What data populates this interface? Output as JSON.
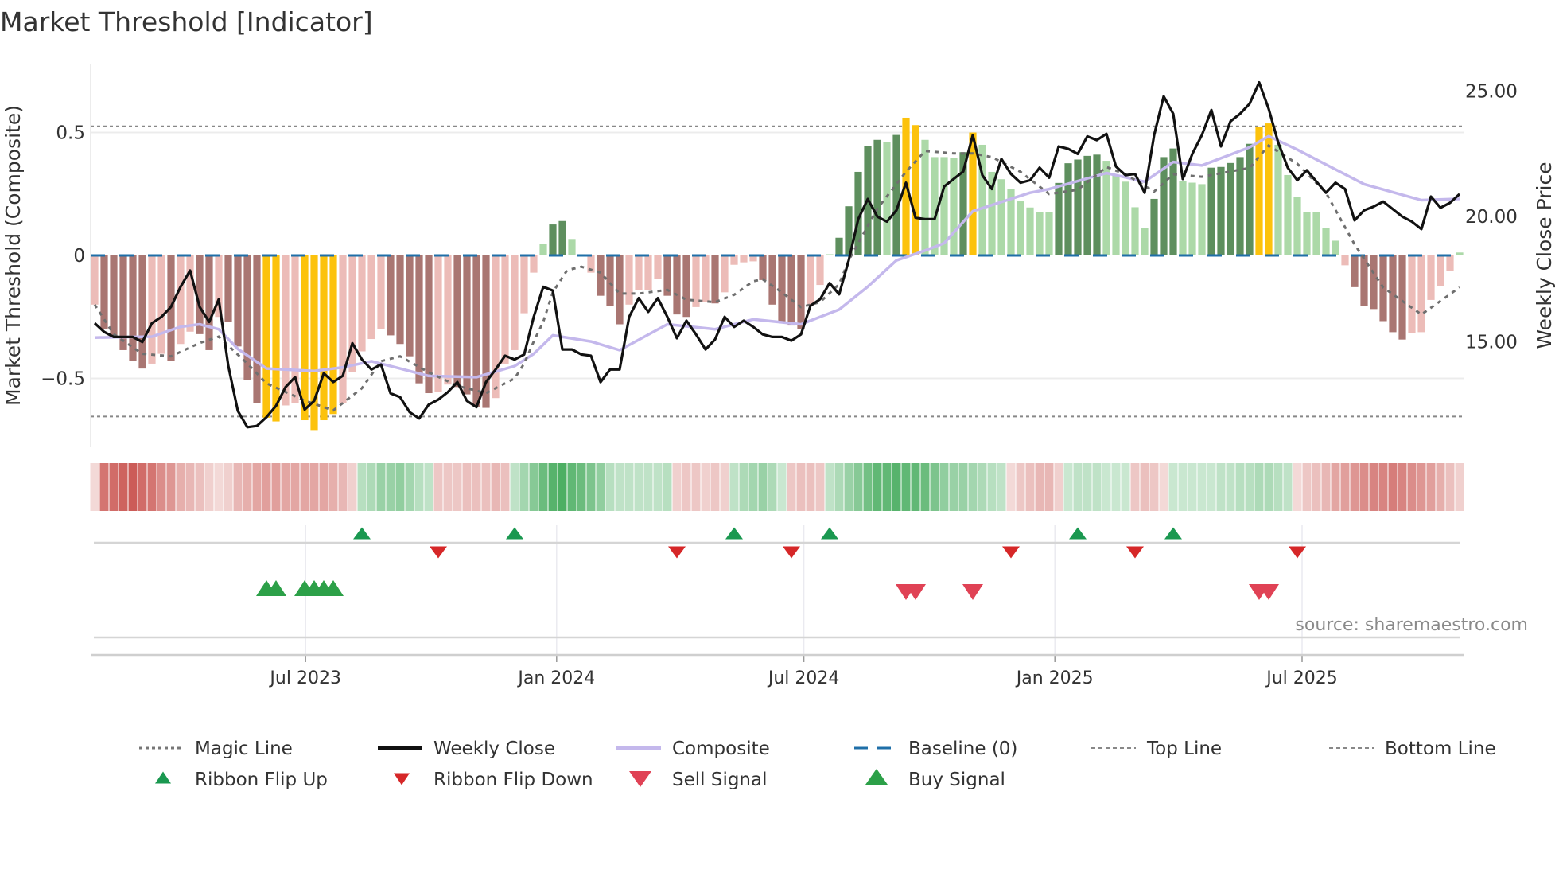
{
  "chart_data": {
    "type": "bar",
    "title": "Market Threshold [Indicator]",
    "ylabel": "Market Threshold (Composite)",
    "ylabel_right": "Weekly Close Price",
    "ylim": [
      -0.78,
      0.78
    ],
    "ylim_right": [
      10.8,
      26.1
    ],
    "xlim": [
      -0.5,
      143.5
    ],
    "x_unit": "week index",
    "y_ticks": [
      {
        "value": 0.5,
        "label": "0.5"
      },
      {
        "value": 0,
        "label": "0"
      },
      {
        "value": -0.5,
        "label": "−0.5"
      }
    ],
    "y_right_ticks": [
      {
        "value": 25,
        "label": "25.00"
      },
      {
        "value": 20,
        "label": "20.00"
      },
      {
        "value": 15,
        "label": "15.00"
      }
    ],
    "x_ticks": [
      {
        "value": 22.1,
        "label": "Jul 2023"
      },
      {
        "value": 48.4,
        "label": "Jan 2024"
      },
      {
        "value": 74.3,
        "label": "Jul 2024"
      },
      {
        "value": 100.6,
        "label": "Jan 2025"
      },
      {
        "value": 126.5,
        "label": "Jul 2025"
      }
    ],
    "top_line": 0.525,
    "bottom_line": -0.655,
    "baseline": 0,
    "composite_bars": [
      -0.2,
      -0.3,
      -0.33,
      -0.385,
      -0.43,
      -0.46,
      -0.44,
      -0.4,
      -0.43,
      -0.36,
      -0.31,
      -0.32,
      -0.385,
      -0.25,
      -0.27,
      -0.37,
      -0.505,
      -0.6,
      -0.66,
      -0.675,
      -0.61,
      -0.6,
      -0.67,
      -0.71,
      -0.67,
      -0.645,
      -0.6,
      -0.475,
      -0.39,
      -0.34,
      -0.3,
      -0.325,
      -0.36,
      -0.41,
      -0.52,
      -0.56,
      -0.555,
      -0.525,
      -0.535,
      -0.565,
      -0.615,
      -0.62,
      -0.58,
      -0.44,
      -0.385,
      -0.235,
      -0.07,
      0.048,
      0.126,
      0.14,
      0.067,
      0.005,
      -0.07,
      -0.164,
      -0.205,
      -0.28,
      -0.2,
      -0.14,
      -0.14,
      -0.095,
      -0.164,
      -0.24,
      -0.25,
      -0.21,
      -0.19,
      -0.195,
      -0.15,
      -0.038,
      -0.028,
      -0.024,
      -0.1,
      -0.2,
      -0.27,
      -0.285,
      -0.3,
      -0.205,
      -0.12,
      0.005,
      0.072,
      0.2,
      0.34,
      0.445,
      0.47,
      0.46,
      0.49,
      0.56,
      0.53,
      0.47,
      0.4,
      0.4,
      0.395,
      0.42,
      0.5,
      0.45,
      0.34,
      0.31,
      0.27,
      0.22,
      0.195,
      0.175,
      0.175,
      0.295,
      0.375,
      0.39,
      0.405,
      0.41,
      0.385,
      0.325,
      0.3,
      0.196,
      0.11,
      0.23,
      0.4,
      0.435,
      0.302,
      0.296,
      0.29,
      0.357,
      0.36,
      0.376,
      0.4,
      0.454,
      0.524,
      0.537,
      0.45,
      0.327,
      0.237,
      0.178,
      0.175,
      0.11,
      0.06,
      -0.04,
      -0.129,
      -0.205,
      -0.218,
      -0.267,
      -0.312,
      -0.342,
      -0.315,
      -0.312,
      -0.181,
      -0.126,
      -0.064,
      0.012
    ],
    "extreme_weeks": [
      18,
      19,
      22,
      23,
      24,
      25,
      85,
      86,
      92,
      122,
      123
    ],
    "weekly_close": [
      15.75,
      15.4,
      15.2,
      15.2,
      15.2,
      15.0,
      15.75,
      16.0,
      16.4,
      17.2,
      17.85,
      16.4,
      15.8,
      16.7,
      14.05,
      12.25,
      11.6,
      11.65,
      12.0,
      12.45,
      13.2,
      13.6,
      12.3,
      12.65,
      13.75,
      13.4,
      13.65,
      14.95,
      14.3,
      13.9,
      14.1,
      12.95,
      12.8,
      12.2,
      11.95,
      12.5,
      12.7,
      13.0,
      13.4,
      12.65,
      12.4,
      13.4,
      13.9,
      14.45,
      14.3,
      14.5,
      16.0,
      17.2,
      17.05,
      14.7,
      14.7,
      14.5,
      14.45,
      13.4,
      13.9,
      13.9,
      16.0,
      16.75,
      16.2,
      16.75,
      16.0,
      15.15,
      15.85,
      15.3,
      14.7,
      15.1,
      16.0,
      15.6,
      15.85,
      15.6,
      15.3,
      15.2,
      15.2,
      15.05,
      15.3,
      16.45,
      16.7,
      17.35,
      16.9,
      18.25,
      19.9,
      20.7,
      20.0,
      19.8,
      20.25,
      21.35,
      19.95,
      19.9,
      19.9,
      21.2,
      21.5,
      21.8,
      23.25,
      21.65,
      21.1,
      22.3,
      21.7,
      21.35,
      21.45,
      21.95,
      21.55,
      22.8,
      22.7,
      22.5,
      23.2,
      23.05,
      23.3,
      22.0,
      21.65,
      21.7,
      20.95,
      23.25,
      24.8,
      24.1,
      21.5,
      22.5,
      23.25,
      24.25,
      22.8,
      23.8,
      24.1,
      24.5,
      25.35,
      24.3,
      22.95,
      21.95,
      21.45,
      21.85,
      21.4,
      20.95,
      21.35,
      21.1,
      19.85,
      20.25,
      20.4,
      20.6,
      20.3,
      20.0,
      19.8,
      19.5,
      20.8,
      20.35,
      20.55,
      20.9
    ],
    "composite_line": [
      [
        0,
        -0.334
      ],
      [
        6,
        -0.33
      ],
      [
        9,
        -0.29
      ],
      [
        11,
        -0.28
      ],
      [
        13,
        -0.3
      ],
      [
        15,
        -0.38
      ],
      [
        18,
        -0.46
      ],
      [
        23,
        -0.47
      ],
      [
        26,
        -0.455
      ],
      [
        29,
        -0.43
      ],
      [
        32,
        -0.46
      ],
      [
        35,
        -0.49
      ],
      [
        40,
        -0.495
      ],
      [
        44,
        -0.45
      ],
      [
        46,
        -0.4
      ],
      [
        48,
        -0.325
      ],
      [
        52,
        -0.35
      ],
      [
        55,
        -0.385
      ],
      [
        60,
        -0.28
      ],
      [
        65,
        -0.3
      ],
      [
        69,
        -0.26
      ],
      [
        74,
        -0.28
      ],
      [
        78,
        -0.22
      ],
      [
        81,
        -0.127
      ],
      [
        84,
        -0.02
      ],
      [
        87,
        0.02
      ],
      [
        89,
        0.05
      ],
      [
        92,
        0.18
      ],
      [
        98,
        0.255
      ],
      [
        100,
        0.27
      ],
      [
        106,
        0.335
      ],
      [
        110,
        0.3
      ],
      [
        113,
        0.38
      ],
      [
        116,
        0.366
      ],
      [
        121,
        0.44
      ],
      [
        123,
        0.485
      ],
      [
        126,
        0.43
      ],
      [
        133,
        0.29
      ],
      [
        139,
        0.225
      ],
      [
        143,
        0.23
      ]
    ],
    "magic_line": [
      [
        0,
        -0.2
      ],
      [
        2,
        -0.32
      ],
      [
        5,
        -0.4
      ],
      [
        8,
        -0.41
      ],
      [
        11,
        -0.356
      ],
      [
        13,
        -0.33
      ],
      [
        16,
        -0.44
      ],
      [
        18,
        -0.52
      ],
      [
        22,
        -0.59
      ],
      [
        25,
        -0.63
      ],
      [
        28,
        -0.54
      ],
      [
        30,
        -0.43
      ],
      [
        32,
        -0.41
      ],
      [
        35,
        -0.475
      ],
      [
        38,
        -0.53
      ],
      [
        41,
        -0.56
      ],
      [
        44,
        -0.5
      ],
      [
        45,
        -0.44
      ],
      [
        46,
        -0.35
      ],
      [
        47,
        -0.27
      ],
      [
        48,
        -0.15
      ],
      [
        49.5,
        -0.06
      ],
      [
        51,
        -0.046
      ],
      [
        53,
        -0.07
      ],
      [
        55,
        -0.155
      ],
      [
        57,
        -0.155
      ],
      [
        60,
        -0.14
      ],
      [
        62,
        -0.18
      ],
      [
        65,
        -0.19
      ],
      [
        67,
        -0.16
      ],
      [
        69,
        -0.105
      ],
      [
        70,
        -0.097
      ],
      [
        72,
        -0.15
      ],
      [
        74,
        -0.21
      ],
      [
        76,
        -0.19
      ],
      [
        78,
        -0.117
      ],
      [
        79,
        -0.02
      ],
      [
        82,
        0.19
      ],
      [
        85,
        0.34
      ],
      [
        87,
        0.425
      ],
      [
        90,
        0.415
      ],
      [
        92,
        0.415
      ],
      [
        94,
        0.4
      ],
      [
        97,
        0.34
      ],
      [
        100,
        0.25
      ],
      [
        103,
        0.267
      ],
      [
        106,
        0.36
      ],
      [
        108,
        0.33
      ],
      [
        111,
        0.26
      ],
      [
        113,
        0.33
      ],
      [
        116,
        0.32
      ],
      [
        121,
        0.356
      ],
      [
        123,
        0.447
      ],
      [
        126,
        0.373
      ],
      [
        129,
        0.255
      ],
      [
        132,
        0.045
      ],
      [
        135,
        -0.13
      ],
      [
        139,
        -0.24
      ],
      [
        143,
        -0.13
      ]
    ],
    "ribbon": [
      -0.15,
      -0.75,
      -0.8,
      -0.85,
      -0.9,
      -0.8,
      -0.75,
      -0.6,
      -0.55,
      -0.4,
      -0.35,
      -0.3,
      -0.2,
      -0.15,
      -0.2,
      -0.35,
      -0.4,
      -0.45,
      -0.5,
      -0.5,
      -0.45,
      -0.45,
      -0.45,
      -0.45,
      -0.45,
      -0.4,
      -0.35,
      -0.2,
      0.3,
      0.35,
      0.45,
      0.45,
      0.5,
      0.4,
      0.3,
      0.25,
      -0.25,
      -0.25,
      -0.25,
      -0.3,
      -0.3,
      -0.3,
      -0.35,
      -0.3,
      0.25,
      0.4,
      0.55,
      0.7,
      0.8,
      0.85,
      0.75,
      0.7,
      0.6,
      0.5,
      0.3,
      0.25,
      0.25,
      0.25,
      0.25,
      0.25,
      0.3,
      -0.2,
      -0.25,
      -0.25,
      -0.2,
      -0.25,
      -0.2,
      0.25,
      0.35,
      0.4,
      0.45,
      0.35,
      0.2,
      -0.25,
      -0.3,
      -0.3,
      -0.25,
      0.25,
      0.35,
      0.45,
      0.55,
      0.65,
      0.75,
      0.75,
      0.8,
      0.75,
      0.75,
      0.7,
      0.6,
      0.5,
      0.45,
      0.45,
      0.4,
      0.35,
      0.3,
      0.25,
      -0.15,
      -0.25,
      -0.3,
      -0.35,
      -0.35,
      -0.2,
      0.2,
      0.25,
      0.25,
      0.25,
      0.2,
      0.2,
      0.2,
      -0.25,
      -0.3,
      -0.25,
      -0.15,
      0.2,
      0.2,
      0.2,
      0.2,
      0.2,
      0.25,
      0.25,
      0.3,
      0.3,
      0.35,
      0.35,
      0.3,
      0.25,
      -0.15,
      -0.25,
      -0.3,
      -0.35,
      -0.45,
      -0.5,
      -0.55,
      -0.6,
      -0.65,
      -0.65,
      -0.7,
      -0.65,
      -0.6,
      -0.55,
      -0.5,
      -0.4,
      -0.3,
      -0.2
    ],
    "ribbon_flip_up": [
      28,
      44,
      67,
      77,
      103,
      113
    ],
    "ribbon_flip_down": [
      36,
      61,
      73,
      96,
      109,
      126
    ],
    "buy_signals": [
      18,
      19,
      22,
      23,
      24,
      25
    ],
    "sell_signals": [
      85,
      86,
      92,
      122,
      123
    ],
    "legend_placement": "bottom",
    "legend": [
      {
        "label": "Magic Line",
        "kind": "dotted",
        "color": "#777777"
      },
      {
        "label": "Weekly Close",
        "kind": "solid",
        "color": "#111111"
      },
      {
        "label": "Composite",
        "kind": "solid-light",
        "color": "#c4b8ec"
      },
      {
        "label": "Baseline (0)",
        "kind": "dashed",
        "color": "#1f6fa8"
      },
      {
        "label": "Top Line",
        "kind": "dotted-thin",
        "color": "#888888"
      },
      {
        "label": "Bottom Line",
        "kind": "dotted-thin",
        "color": "#888888"
      },
      {
        "label": "Ribbon Flip Up",
        "kind": "tri-up-small",
        "color": "#1a9850"
      },
      {
        "label": "Ribbon Flip Down",
        "kind": "tri-down-small",
        "color": "#d62728"
      },
      {
        "label": "Sell Signal",
        "kind": "tri-down",
        "color": "#e04255"
      },
      {
        "label": "Buy Signal",
        "kind": "tri-up",
        "color": "#2ca048"
      }
    ],
    "source": "source: sharemaestro.com"
  },
  "colors": {
    "neg_strong": "#a97672",
    "neg_weak": "#ecbcb8",
    "pos_strong": "#5e8f5e",
    "pos_weak": "#acd9a8",
    "extreme": "#fcc20c",
    "ribbon_red": "200,80,75",
    "ribbon_green": "55,165,80"
  }
}
